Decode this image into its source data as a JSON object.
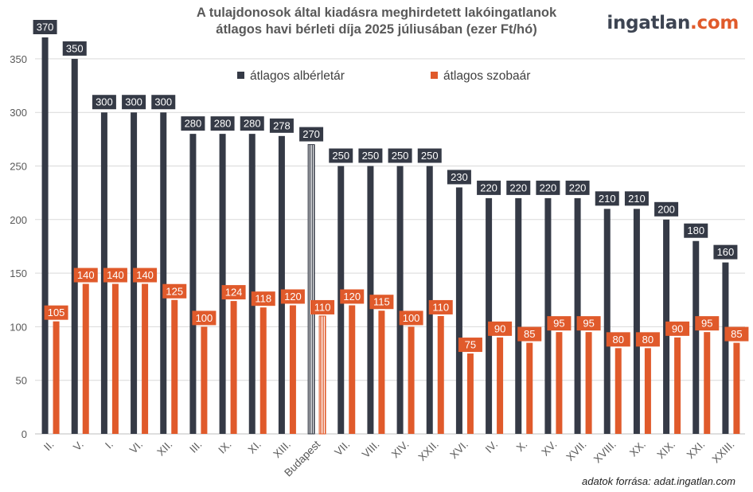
{
  "chart_data": {
    "type": "bar",
    "title_line1": "A tulajdonosok által kiadásra meghirdetett lakóingatlanok",
    "title_line2": "átlagos havi bérleti díja 2025 júliusában (ezer Ft/hó)",
    "categories": [
      "II.",
      "V.",
      "I.",
      "VI.",
      "XII.",
      "III.",
      "IX.",
      "XI.",
      "XIII.",
      "Budapest",
      "VII.",
      "VIII.",
      "XIV.",
      "XXII.",
      "XVI.",
      "IV.",
      "X.",
      "XV.",
      "XVII.",
      "XVIII.",
      "XX.",
      "XIX.",
      "XXI.",
      "XXIII."
    ],
    "highlight_category": "Budapest",
    "series": [
      {
        "name": "átlagos albérletár",
        "color": "#353a46",
        "values": [
          370,
          350,
          300,
          300,
          300,
          280,
          280,
          280,
          278,
          270,
          250,
          250,
          250,
          250,
          230,
          220,
          220,
          220,
          220,
          210,
          210,
          200,
          180,
          160
        ]
      },
      {
        "name": "átlagos szobaár",
        "color": "#e05a2b",
        "values": [
          105,
          140,
          140,
          140,
          125,
          100,
          124,
          118,
          120,
          110,
          120,
          115,
          100,
          110,
          75,
          90,
          85,
          95,
          95,
          80,
          80,
          90,
          95,
          85
        ]
      }
    ],
    "yticks": [
      0,
      50,
      100,
      150,
      200,
      250,
      300,
      350
    ],
    "ylim": [
      0,
      370
    ],
    "grid": true,
    "legend_position": "top-center"
  },
  "logo": {
    "part1": "ingatlan",
    "part2": ".com"
  },
  "source": "adatok forrása: adat.ingatlan.com"
}
